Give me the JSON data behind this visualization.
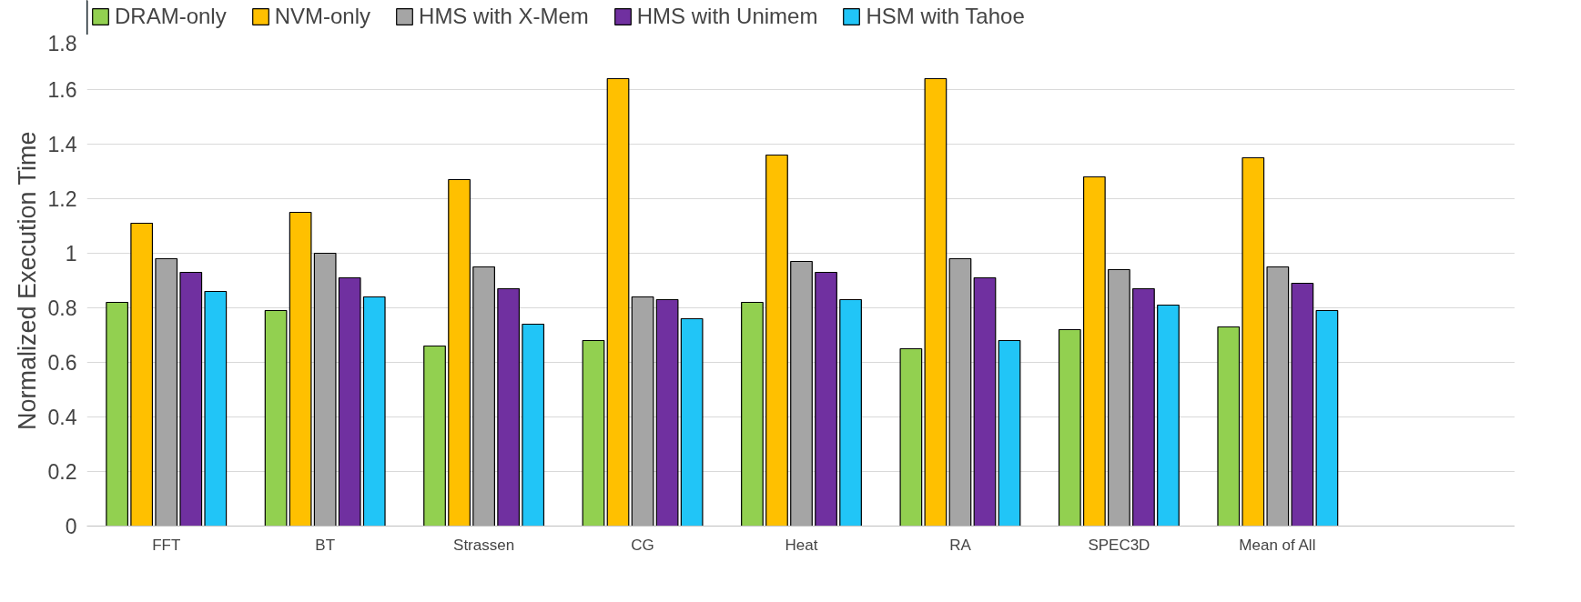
{
  "chart_data": {
    "type": "bar",
    "ylabel": "Normalized Execution Time",
    "categories": [
      "FFT",
      "BT",
      "Strassen",
      "CG",
      "Heat",
      "RA",
      "SPEC3D",
      "Mean of All",
      null
    ],
    "series": [
      {
        "name": "DRAM-only",
        "color": "#92d050",
        "values": [
          0.82,
          0.79,
          0.66,
          0.68,
          0.82,
          0.65,
          0.72,
          0.73,
          null
        ]
      },
      {
        "name": "NVM-only",
        "color": "#ffc000",
        "values": [
          1.11,
          1.15,
          1.27,
          1.64,
          1.36,
          1.64,
          1.28,
          1.35,
          null
        ]
      },
      {
        "name": "HMS with X-Mem",
        "color": "#a5a5a5",
        "values": [
          0.98,
          1.0,
          0.95,
          0.84,
          0.97,
          0.98,
          0.94,
          0.95,
          null
        ]
      },
      {
        "name": "HMS with Unimem",
        "color": "#7030a0",
        "values": [
          0.93,
          0.91,
          0.87,
          0.83,
          0.93,
          0.91,
          0.87,
          0.89,
          null
        ]
      },
      {
        "name": "HSM with Tahoe",
        "color": "#21c5f7",
        "values": [
          0.86,
          0.84,
          0.74,
          0.76,
          0.83,
          0.68,
          0.81,
          0.79,
          null
        ]
      }
    ],
    "ylim": [
      0,
      1.8
    ],
    "yticks": [
      0,
      0.2,
      0.4,
      0.6,
      0.8,
      1,
      1.2,
      1.4,
      1.6,
      1.8
    ],
    "grid": "y",
    "legend": "top"
  }
}
